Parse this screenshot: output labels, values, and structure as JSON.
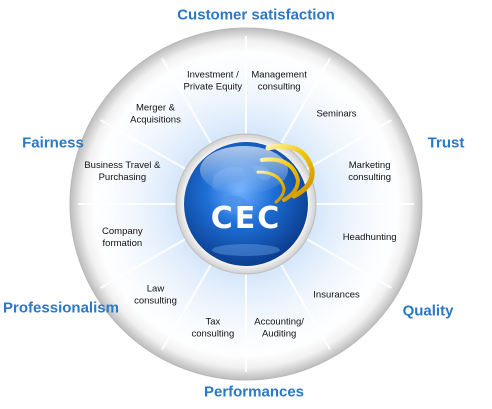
{
  "values": {
    "top": "Customer satisfaction",
    "left_upper": "Fairness",
    "right_upper": "Trust",
    "left_lower": "Professionalism",
    "right_lower": "Quality",
    "bottom": "Performances"
  },
  "services": [
    {
      "id": "management-consulting",
      "lines": [
        "Management",
        "consulting"
      ]
    },
    {
      "id": "seminars",
      "lines": [
        "Seminars"
      ]
    },
    {
      "id": "marketing-consulting",
      "lines": [
        "Marketing",
        "consulting"
      ]
    },
    {
      "id": "headhunting",
      "lines": [
        "Headhunting"
      ]
    },
    {
      "id": "insurances",
      "lines": [
        "Insurances"
      ]
    },
    {
      "id": "accounting-auditing",
      "lines": [
        "Accounting/",
        "Auditing"
      ]
    },
    {
      "id": "tax-consulting",
      "lines": [
        "Tax",
        "consulting"
      ]
    },
    {
      "id": "law-consulting",
      "lines": [
        "Law",
        "consulting"
      ]
    },
    {
      "id": "company-formation",
      "lines": [
        "Company",
        "formation"
      ]
    },
    {
      "id": "business-travel",
      "lines": [
        "Business Travel &",
        "Purchasing"
      ]
    },
    {
      "id": "merger-acquisitions",
      "lines": [
        "Merger &",
        "Acquisitions"
      ]
    },
    {
      "id": "investment-private-equity",
      "lines": [
        "Investment /",
        "Private Equity"
      ]
    }
  ],
  "logo": {
    "text": "CEC"
  },
  "colors": {
    "accent": "#2b78c5",
    "gold": "#f2c200",
    "hub": "#1565c8"
  }
}
